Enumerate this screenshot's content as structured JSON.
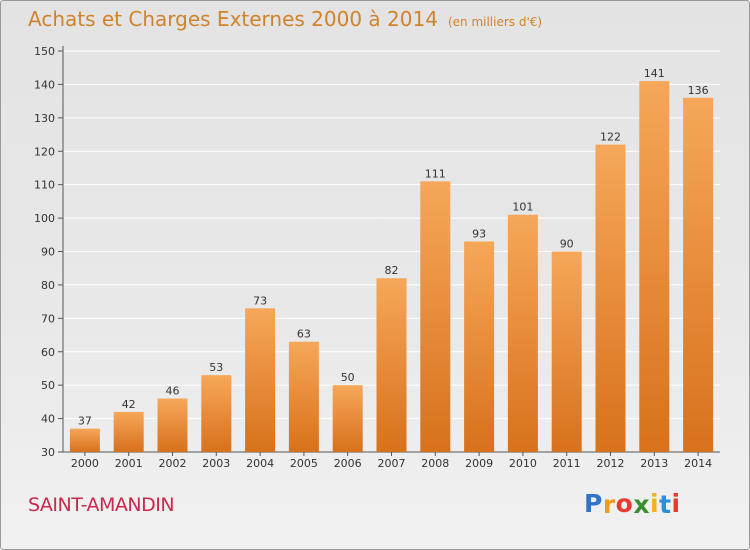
{
  "title": "Achats et Charges Externes 2000 à 2014",
  "unit": "(en milliers d'€)",
  "commune": "SAINT-AMANDIN",
  "logo": {
    "text": "Proxiti",
    "letters": [
      "P",
      "r",
      "o",
      "x",
      "i",
      "t",
      "i"
    ],
    "colors": [
      "#2f74c6",
      "#f39a1c",
      "#e63b2e",
      "#3a8f2c",
      "#f1b31c",
      "#2f8fd6",
      "#e63b2e"
    ]
  },
  "colors": {
    "bar_top": "#f6a75a",
    "bar_bottom": "#d8711b",
    "title": "#d1832a",
    "commune": "#c8294e"
  },
  "chart_data": {
    "type": "bar",
    "categories": [
      "2000",
      "2001",
      "2002",
      "2003",
      "2004",
      "2005",
      "2006",
      "2007",
      "2008",
      "2009",
      "2010",
      "2011",
      "2012",
      "2013",
      "2014"
    ],
    "values": [
      37,
      42,
      46,
      53,
      73,
      63,
      50,
      82,
      111,
      93,
      101,
      90,
      122,
      141,
      136
    ],
    "ylim": [
      30,
      150
    ],
    "yticks": [
      30,
      40,
      50,
      60,
      70,
      80,
      90,
      100,
      110,
      120,
      130,
      140,
      150
    ],
    "grid": true,
    "title": "Achats et Charges Externes 2000 à 2014",
    "xlabel": "",
    "ylabel": ""
  }
}
